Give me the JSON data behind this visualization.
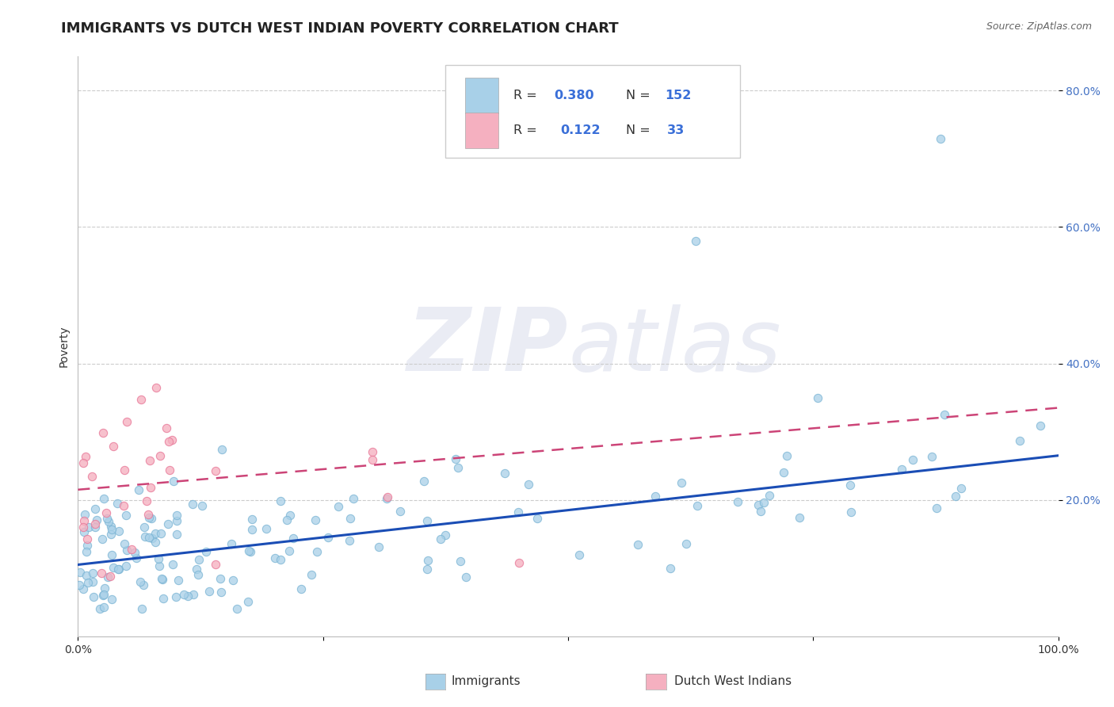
{
  "title": "IMMIGRANTS VS DUTCH WEST INDIAN POVERTY CORRELATION CHART",
  "source_text": "Source: ZipAtlas.com",
  "ylabel": "Poverty",
  "watermark": "ZIPatlas",
  "xlim": [
    0.0,
    1.0
  ],
  "ylim": [
    0.0,
    0.85
  ],
  "x_tick_vals": [
    0.0,
    0.25,
    0.5,
    0.75,
    1.0
  ],
  "x_tick_labels": [
    "0.0%",
    "",
    "",
    "",
    "100.0%"
  ],
  "y_tick_vals": [
    0.2,
    0.4,
    0.6,
    0.8
  ],
  "y_tick_labels": [
    "20.0%",
    "40.0%",
    "60.0%",
    "80.0%"
  ],
  "blue_line_y_start": 0.105,
  "blue_line_y_end": 0.265,
  "pink_line_y_start": 0.215,
  "pink_line_y_end": 0.335,
  "blue_color": "#a8d0e8",
  "blue_edge_color": "#7ab4d4",
  "blue_line_color": "#1a4db5",
  "pink_color": "#f5b0c0",
  "pink_edge_color": "#e87898",
  "pink_line_color": "#cc4477",
  "scatter_size": 55,
  "grid_color": "#cccccc",
  "background_color": "#ffffff",
  "watermark_color": "#eaecf4",
  "title_fontsize": 13,
  "axis_label_fontsize": 10,
  "tick_fontsize": 10,
  "source_fontsize": 9,
  "legend_label_blue": "Immigrants",
  "legend_label_pink": "Dutch West Indians"
}
